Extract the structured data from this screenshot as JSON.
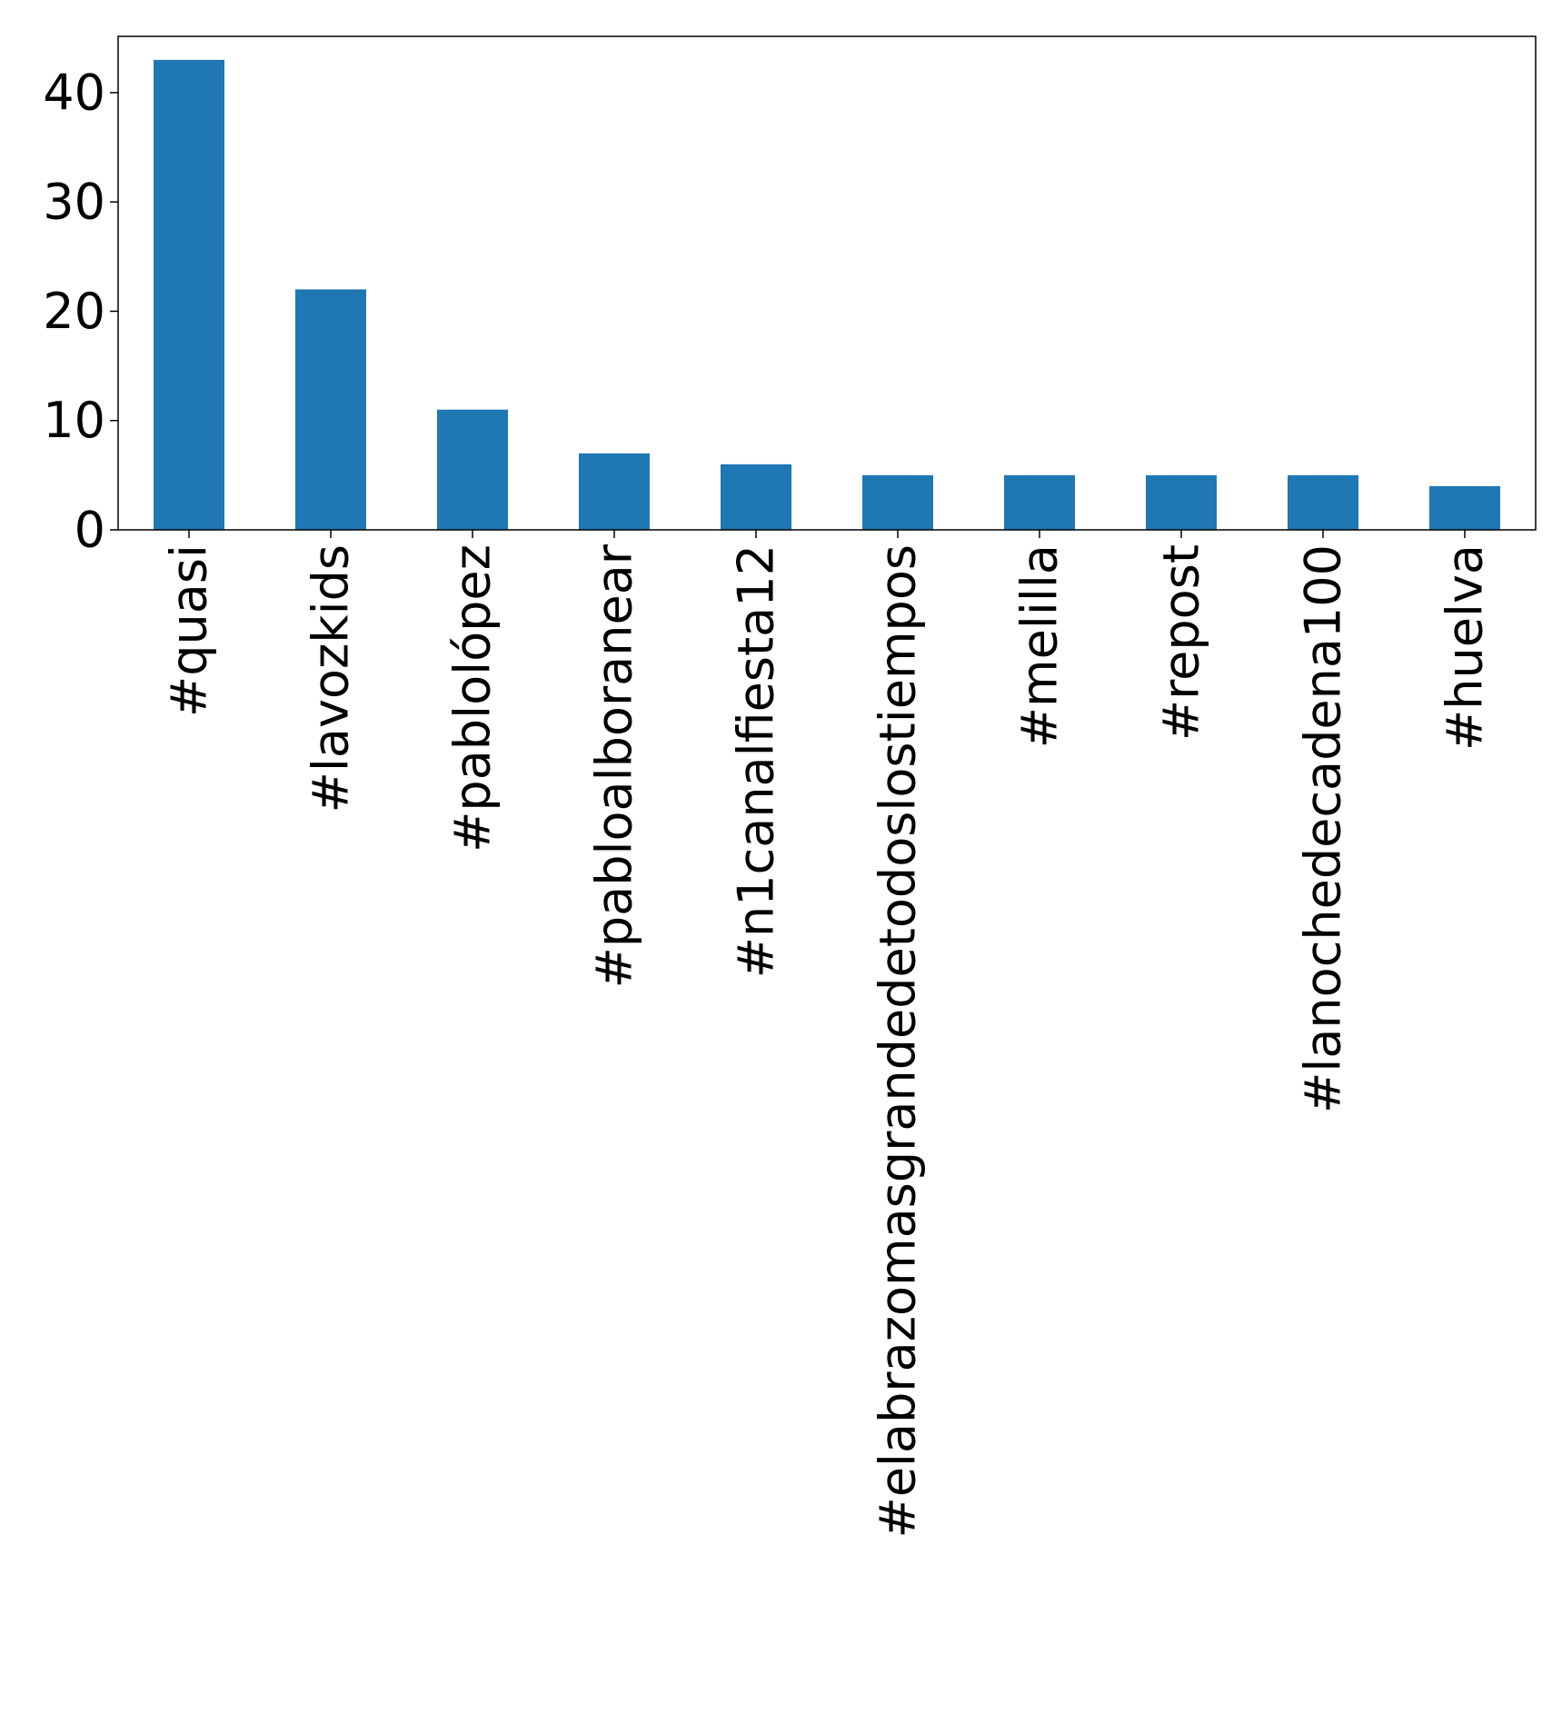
{
  "chart_data": {
    "type": "bar",
    "title": "",
    "xlabel": "",
    "ylabel": "",
    "categories": [
      "#quasi",
      "#lavozkids",
      "#pablolópez",
      "#pabloalboranear",
      "#n1canalfiesta12",
      "#elabrazomasgrandedetodoslostiempos",
      "#melilla",
      "#repost",
      "#lanochedecadena100",
      "#huelva"
    ],
    "values": [
      43,
      22,
      11,
      7,
      6,
      5,
      5,
      5,
      5,
      4
    ],
    "ylim": [
      0,
      45.15
    ],
    "yticks": [
      0,
      10,
      20,
      30,
      40
    ],
    "grid": false,
    "legend": "none",
    "bar_color": "#1f77b4"
  }
}
